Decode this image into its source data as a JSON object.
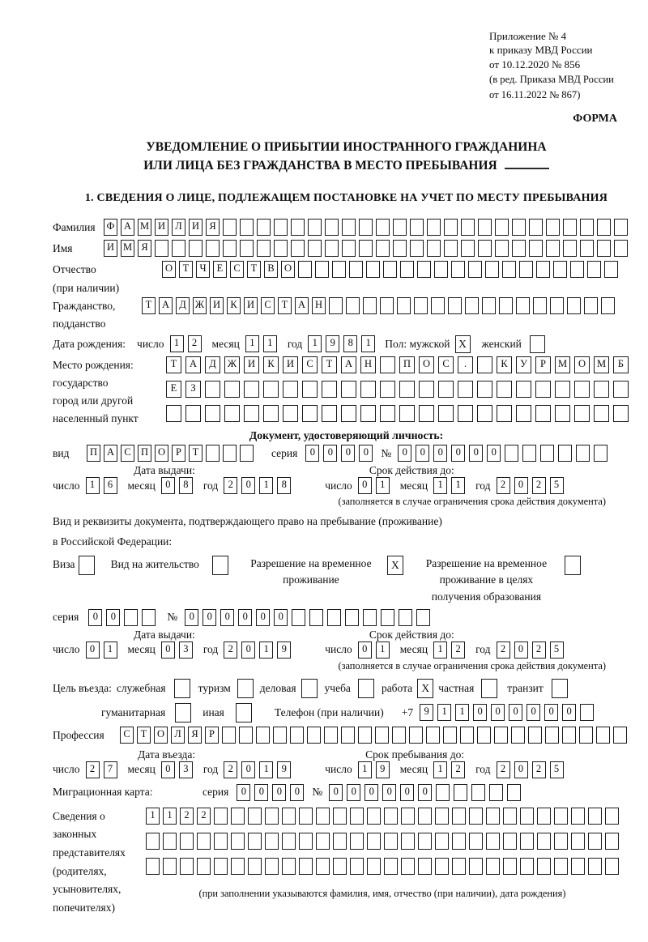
{
  "header": {
    "appendix_lines": [
      "Приложение № 4",
      "к приказу МВД России",
      "от 10.12.2020 № 856"
    ],
    "edition_lines": [
      "(в ред. Приказа МВД России",
      "от 16.11.2022 № 867)"
    ],
    "forma": "ФОРМА"
  },
  "title": {
    "line1": "УВЕДОМЛЕНИЕ О ПРИБЫТИИ ИНОСТРАННОГО ГРАЖДАНИНА",
    "line2": "ИЛИ ЛИЦА БЕЗ ГРАЖДАНСТВА В МЕСТО ПРЕБЫВАНИЯ"
  },
  "section1_heading": "1. СВЕДЕНИЯ О ЛИЦЕ, ПОДЛЕЖАЩЕМ ПОСТАНОВКЕ НА УЧЕТ ПО МЕСТУ ПРЕБЫВАНИЯ",
  "labels": {
    "surname": "Фамилия",
    "name": "Имя",
    "patronymic1": "Отчество",
    "patronymic2": "(при наличии)",
    "citizenship1": "Гражданство,",
    "citizenship2": "подданство",
    "birth_date": "Дата рождения:",
    "day": "число",
    "month": "месяц",
    "year": "год",
    "sex_male": "Пол: мужской",
    "sex_female": "женский",
    "birth_place": [
      "Место рождения:",
      "государство",
      "город или другой",
      "населенный пункт"
    ],
    "doc_heading": "Документ, удостоверяющий личность:",
    "vid": "вид",
    "seriya": "серия",
    "no": "№",
    "issue_date": "Дата выдачи:",
    "valid_until": "Срок действия до:",
    "valid_note": "(заполняется в случае ограничения срока действия документа)",
    "residence_line1": "Вид и реквизиты документа, подтверждающего право на пребывание (проживание)",
    "residence_line2": "в Российской Федерации:",
    "visa": "Виза",
    "residence_permit": "Вид на жительство",
    "temp_residence": [
      "Разрешение на временное",
      "проживание"
    ],
    "temp_residence_edu": [
      "Разрешение на временное",
      "проживание в целях",
      "получения образования"
    ],
    "purpose": "Цель въезда:",
    "p_sluzhebnaya": "служебная",
    "p_turizm": "туризм",
    "p_delovaya": "деловая",
    "p_ucheba": "учеба",
    "p_rabota": "работа",
    "p_chastnaya": "частная",
    "p_tranzit": "транзит",
    "p_gumanitarnaya": "гуманитарная",
    "p_inaya": "иная",
    "phone": "Телефон (при наличии)",
    "phone_prefix": "+7",
    "profession": "Профессия",
    "entry_date": "Дата въезда:",
    "stay_until": "Срок пребывания до:",
    "migration_card": "Миграционная карта:",
    "legal_rep": [
      "Сведения о",
      "законных",
      "представителях",
      "(родителях,",
      "усыновителях,",
      "попечителях)"
    ],
    "legal_note": "(при заполнении указываются фамилия, имя, отчество (при наличии), дата рождения)"
  },
  "rows": {
    "surname": {
      "text": "ФАМИЛИЯ",
      "count": 31
    },
    "name": {
      "text": "ИМЯ",
      "count": 31
    },
    "patronymic": {
      "text": "ОТЧЕСТВО",
      "count": 27
    },
    "citizenship": {
      "text": "ТАДЖИКИСТАН",
      "count": 28
    },
    "birth_place1": {
      "text": "ТАДЖИКИСТАН ПОС. КУРМОМБ",
      "count": 24
    },
    "birth_place2": {
      "text": "ЕЗ",
      "count": 24
    },
    "birth_place3": {
      "text": "",
      "count": 24
    },
    "doc_vid": {
      "text": "ПАСПОРТ",
      "count": 10
    },
    "doc_seriya": {
      "text": "0000",
      "count": 4
    },
    "doc_no": {
      "text": "000000",
      "count": 12
    },
    "permit_seriya": {
      "text": "00",
      "count": 4
    },
    "permit_no": {
      "text": "000000",
      "count": 14
    },
    "phone": {
      "text": "911000000",
      "count": 10
    },
    "profession": {
      "text": "СТОЛЯР",
      "count": 30
    },
    "mig_seriya": {
      "text": "0000",
      "count": 4
    },
    "mig_no": {
      "text": "000000",
      "count": 11
    },
    "legal1": {
      "text": "1122",
      "count": 28
    },
    "legal2": {
      "text": "",
      "count": 28
    },
    "legal3": {
      "text": "",
      "count": 28
    }
  },
  "dates": {
    "birth": {
      "d": "12",
      "m": "11",
      "y": "1981"
    },
    "doc_issue": {
      "d": "16",
      "m": "08",
      "y": "2018"
    },
    "doc_valid": {
      "d": "01",
      "m": "11",
      "y": "2025"
    },
    "permit_issue": {
      "d": "01",
      "m": "03",
      "y": "2019"
    },
    "permit_valid": {
      "d": "01",
      "m": "12",
      "y": "2025"
    },
    "entry": {
      "d": "27",
      "m": "03",
      "y": "2019"
    },
    "stay": {
      "d": "19",
      "m": "12",
      "y": "2025"
    }
  },
  "checks": {
    "male": "X",
    "female": "",
    "visa": "",
    "residence_permit": "",
    "temp_residence": "X",
    "temp_residence_edu": "",
    "sluzhebnaya": "",
    "turizm": "",
    "delovaya": "",
    "ucheba": "",
    "rabota": "X",
    "chastnaya": "",
    "tranzit": "",
    "gumanitarnaya": "",
    "inaya": ""
  },
  "colors": {
    "ink": "#1b1b1b",
    "paper": "#ffffff"
  }
}
